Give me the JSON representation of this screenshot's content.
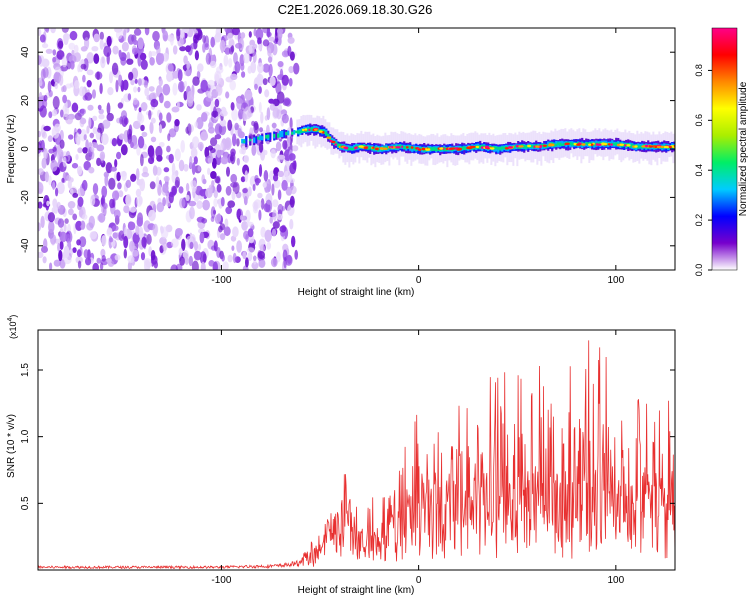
{
  "title": "C2E1.2026.069.18.30.G26",
  "chart_data": [
    {
      "type": "heatmap",
      "name": "spectrogram",
      "xlabel": "Height of straight line (km)",
      "ylabel": "Frequency (Hz)",
      "xlim": [
        -193,
        130
      ],
      "ylim": [
        -50,
        50
      ],
      "xticks": [
        -100,
        0,
        100
      ],
      "yticks": [
        -40,
        -20,
        0,
        20,
        40
      ],
      "noise_region_x": [
        -193,
        -62
      ],
      "signal_track": {
        "x": [
          -90,
          -70,
          -62,
          -58,
          -52,
          -48,
          -44,
          -40,
          -35,
          -30,
          -20,
          -10,
          0,
          10,
          20,
          30,
          40,
          50,
          60,
          70,
          80,
          90,
          100,
          110,
          120,
          130
        ],
        "y": [
          3,
          6,
          7,
          8,
          8,
          7,
          3,
          1,
          0,
          1,
          0,
          1,
          0,
          0,
          0,
          1,
          0,
          1,
          1,
          2,
          2,
          2,
          2,
          1,
          1,
          1
        ]
      },
      "colorbar": {
        "label": "Normalized spectral amplitude",
        "ticks": [
          0.0,
          0.2,
          0.4,
          0.6,
          0.8
        ],
        "range": [
          0,
          0.97
        ],
        "colors": [
          "#ffffff",
          "#7700cc",
          "#0000ff",
          "#00ccff",
          "#00ee66",
          "#aaee00",
          "#ffff00",
          "#ff8800",
          "#ff0000",
          "#ff0088"
        ]
      }
    },
    {
      "type": "line",
      "name": "snr",
      "xlabel": "Height of straight line (km)",
      "ylabel": "SNR (10 * v/v)",
      "scale_label": "(x10",
      "scale_exp": "4",
      "xlim": [
        -193,
        130
      ],
      "ylim": [
        0,
        1.8
      ],
      "xticks": [
        -100,
        0,
        100
      ],
      "yticks": [
        0.5,
        1.0,
        1.5
      ],
      "ytick_labels": [
        "0.5",
        "1.0",
        "1.5"
      ],
      "color": "#e83030",
      "envelope": {
        "x": [
          -193,
          -150,
          -100,
          -70,
          -60,
          -50,
          -45,
          -40,
          -35,
          -30,
          -25,
          -20,
          -10,
          0,
          10,
          20,
          30,
          40,
          50,
          60,
          70,
          80,
          90,
          100,
          110,
          120,
          130
        ],
        "base": [
          0.02,
          0.02,
          0.02,
          0.03,
          0.05,
          0.12,
          0.25,
          0.28,
          0.3,
          0.15,
          0.25,
          0.2,
          0.3,
          0.45,
          0.4,
          0.4,
          0.45,
          0.4,
          0.42,
          0.4,
          0.42,
          0.4,
          0.38,
          0.4,
          0.4,
          0.38,
          0.4
        ],
        "peak": [
          0.02,
          0.03,
          0.04,
          0.06,
          0.1,
          0.3,
          0.45,
          0.6,
          0.9,
          0.4,
          0.6,
          0.55,
          0.8,
          1.25,
          1.2,
          1.3,
          1.25,
          1.6,
          1.7,
          1.55,
          1.5,
          1.65,
          1.8,
          1.55,
          1.45,
          1.3,
          1.3
        ]
      }
    }
  ]
}
